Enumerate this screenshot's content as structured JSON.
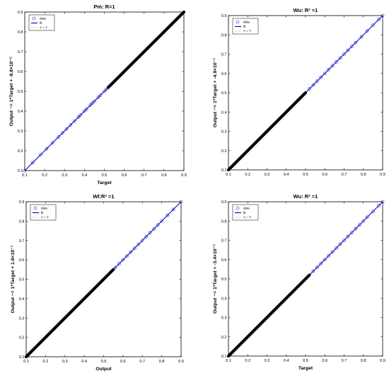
{
  "colors": {
    "marker": "#1f1fb4",
    "fit": "#0000cc",
    "ideal": "#666666",
    "axis": "#000000"
  },
  "chart_data": [
    {
      "type": "scatter",
      "title": "Pm: R=1",
      "xlabel": "Target",
      "ylabel": "Output ~= 1*Target + -8.8×10⁻⁵",
      "xlim": [
        0.1,
        0.9
      ],
      "ylim": [
        0.1,
        0.9
      ],
      "xticks": [
        "0.1",
        "0.2",
        "0.3",
        "0.4",
        "0.5",
        "0.6",
        "0.7",
        "0.8",
        "0.9"
      ],
      "yticks": [
        "0.1",
        "0.2",
        "0.3",
        "0.4",
        "0.5",
        "0.6",
        "0.7",
        "0.8",
        "0.9"
      ],
      "legend": [
        "data",
        "fit",
        "Y = T"
      ],
      "legend_position": "top-left",
      "dense_x": [
        0.52,
        0.9
      ],
      "points": [
        0.1,
        0.14,
        0.18,
        0.21,
        0.24,
        0.27,
        0.29,
        0.31,
        0.33,
        0.35,
        0.37,
        0.38,
        0.4,
        0.41,
        0.43,
        0.44,
        0.45,
        0.47,
        0.48,
        0.5,
        0.51,
        0.52
      ],
      "fit": {
        "slope": 1,
        "intercept": -8.8e-05
      }
    },
    {
      "type": "scatter",
      "title": "Wu: R² =1",
      "xlabel": "",
      "ylabel": "Output ~= 1*Target + -4.9×10⁻⁷",
      "xlim": [
        0.1,
        0.9
      ],
      "ylim": [
        0.1,
        0.9
      ],
      "xticks": [
        "0.1",
        "0.2",
        "0.3",
        "0.4",
        "0.5",
        "0.6",
        "0.7",
        "0.8",
        "0.9"
      ],
      "yticks": [
        "0.1",
        "0.2",
        "0.3",
        "0.4",
        "0.5",
        "0.6",
        "0.7",
        "0.8",
        "0.9"
      ],
      "legend": [
        "data",
        "fit",
        "Y = T"
      ],
      "legend_position": "top-left",
      "dense_x": [
        0.1,
        0.5
      ],
      "points": [
        0.52,
        0.54,
        0.56,
        0.58,
        0.6,
        0.62,
        0.64,
        0.66,
        0.68,
        0.7,
        0.72,
        0.74,
        0.76,
        0.79,
        0.82,
        0.85,
        0.88,
        0.9
      ],
      "fit": {
        "slope": 1,
        "intercept": -4.9e-07
      }
    },
    {
      "type": "scatter",
      "title": "Wl:R² =1",
      "xlabel": "Output",
      "ylabel": "Output ~= 1*Target + 1.8×10⁻⁷",
      "xlim": [
        0.1,
        0.9
      ],
      "ylim": [
        0.1,
        0.9
      ],
      "xticks": [
        "0.1",
        "0.2",
        "0.3",
        "0.4",
        "0.5",
        "0.6",
        "0.7",
        "0.8",
        "0.9"
      ],
      "yticks": [
        "0.1",
        "0.2",
        "0.3",
        "0.4",
        "0.5",
        "0.6",
        "0.7",
        "0.8",
        "0.9"
      ],
      "legend": [
        "data",
        "fit",
        "Y = T"
      ],
      "legend_position": "top-left",
      "dense_x": [
        0.1,
        0.55
      ],
      "points": [
        0.56,
        0.58,
        0.6,
        0.62,
        0.64,
        0.66,
        0.68,
        0.7,
        0.72,
        0.74,
        0.76,
        0.78,
        0.8,
        0.83,
        0.86,
        0.9
      ],
      "fit": {
        "slope": 1,
        "intercept": 1.8e-07
      }
    },
    {
      "type": "scatter",
      "title": "Wu: R² =1",
      "xlabel": "Target",
      "ylabel": "Output ~= 1*Target + -3.4×10⁻⁷",
      "xlim": [
        0.1,
        0.9
      ],
      "ylim": [
        0.1,
        0.9
      ],
      "xticks": [
        "0.1",
        "0.2",
        "0.3",
        "0.4",
        "0.5",
        "0.6",
        "0.7",
        "0.8",
        "0.9"
      ],
      "yticks": [
        "0.1",
        "0.2",
        "0.3",
        "0.4",
        "0.5",
        "0.6",
        "0.7",
        "0.8",
        "0.9"
      ],
      "legend": [
        "data",
        "fit",
        "Y = T"
      ],
      "legend_position": "top-left",
      "dense_x": [
        0.1,
        0.52
      ],
      "points": [
        0.54,
        0.56,
        0.58,
        0.6,
        0.62,
        0.64,
        0.66,
        0.68,
        0.7,
        0.72,
        0.74,
        0.76,
        0.78,
        0.8,
        0.82,
        0.85,
        0.88,
        0.9
      ],
      "fit": {
        "slope": 1,
        "intercept": -3.4e-07
      }
    }
  ]
}
